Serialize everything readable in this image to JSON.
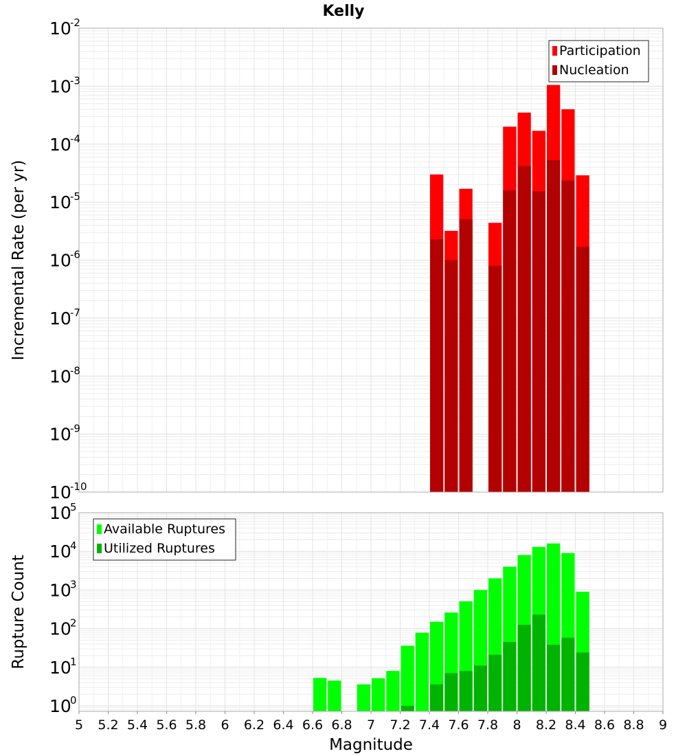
{
  "chart_data": [
    {
      "type": "bar",
      "title": "Kelly",
      "xlabel": "",
      "ylabel": "Incremental Rate (per yr)",
      "yscale": "log",
      "ylim": [
        1e-10,
        0.01
      ],
      "xlim": [
        5,
        9
      ],
      "bin_width": 0.1,
      "legend": {
        "placement": "top-right"
      },
      "series": [
        {
          "name": "Participation",
          "color": "#ff0000",
          "x": [
            7.45,
            7.55,
            7.65,
            7.85,
            7.95,
            8.05,
            8.15,
            8.25,
            8.35,
            8.45
          ],
          "values": [
            3e-05,
            3.2e-06,
            1.7e-05,
            4.4e-06,
            0.0002,
            0.00035,
            0.00017,
            0.00105,
            0.0004,
            2.9e-05
          ]
        },
        {
          "name": "Nucleation",
          "color": "#b30000",
          "x": [
            7.45,
            7.55,
            7.65,
            7.85,
            7.95,
            8.05,
            8.15,
            8.25,
            8.35,
            8.45
          ],
          "values": [
            2.3e-06,
            1e-06,
            5.1e-06,
            8e-07,
            1.6e-05,
            4.2e-05,
            1.55e-05,
            5.3e-05,
            2.35e-05,
            1.7e-06
          ]
        }
      ]
    },
    {
      "type": "bar",
      "title": "",
      "xlabel": "Magnitude",
      "ylabel": "Rupture Count",
      "yscale": "log",
      "ylim": [
        0.72,
        100000
      ],
      "xlim": [
        5,
        9
      ],
      "bin_width": 0.1,
      "xticks": [
        "5",
        "5.2",
        "5.4",
        "5.6",
        "5.8",
        "6",
        "6.2",
        "6.4",
        "6.6",
        "6.8",
        "7",
        "7.2",
        "7.4",
        "7.6",
        "7.8",
        "8",
        "8.2",
        "8.4",
        "8.6",
        "8.8",
        "9"
      ],
      "legend": {
        "placement": "top-left"
      },
      "series": [
        {
          "name": "Available Ruptures",
          "color": "#00ff00",
          "x": [
            6.65,
            6.75,
            6.95,
            7.05,
            7.15,
            7.25,
            7.35,
            7.45,
            7.55,
            7.65,
            7.75,
            7.85,
            7.95,
            8.05,
            8.15,
            8.25,
            8.35,
            8.45
          ],
          "values": [
            5.3,
            4.5,
            3.6,
            5.2,
            8,
            36,
            78,
            150,
            260,
            510,
            1000,
            2000,
            4000,
            8000,
            13000,
            16000,
            9000,
            900
          ]
        },
        {
          "name": "Utilized Ruptures",
          "color": "#00b300",
          "x": [
            7.25,
            7.45,
            7.55,
            7.65,
            7.75,
            7.85,
            7.95,
            8.05,
            8.15,
            8.25,
            8.35,
            8.45
          ],
          "values": [
            1,
            3.6,
            7,
            8,
            11,
            21,
            45,
            125,
            230,
            38,
            58,
            24
          ]
        }
      ]
    }
  ]
}
